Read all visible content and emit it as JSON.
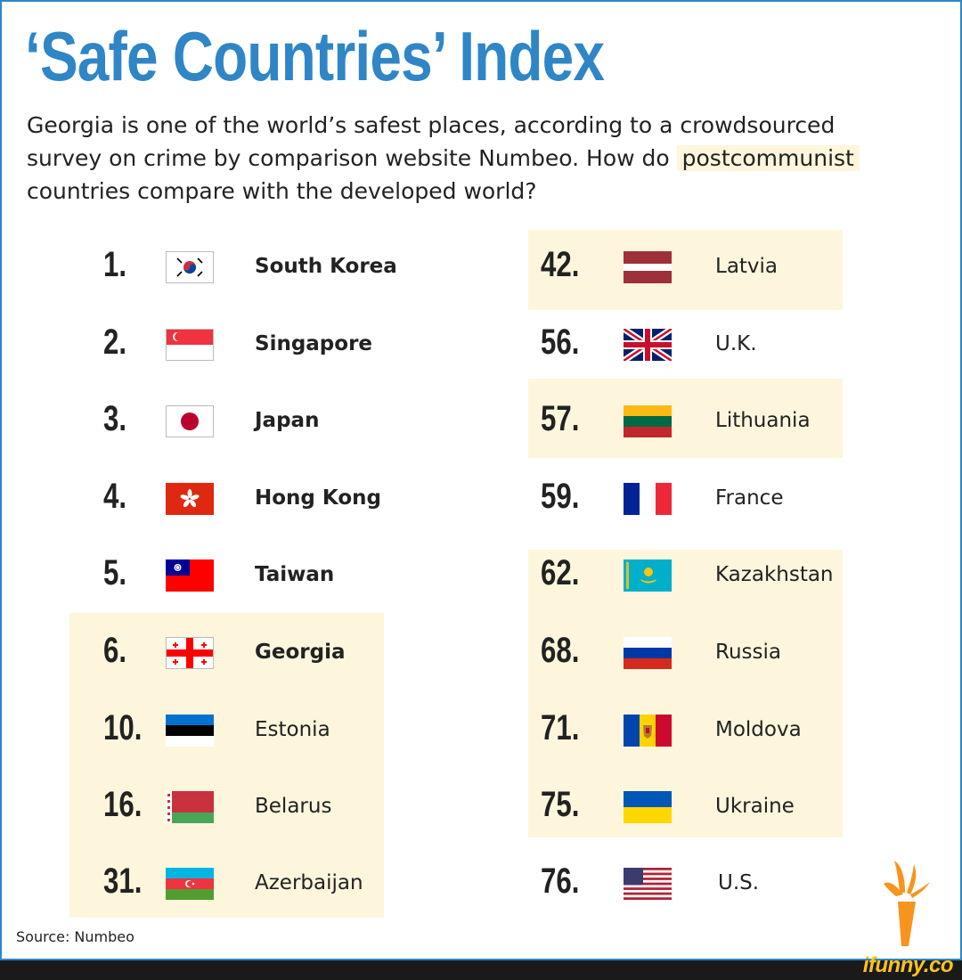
{
  "title": "‘Safe Countries’ Index",
  "subtitle": {
    "before": "Georgia is one of the world’s safest places, according to a crowdsourced survey on crime by comparison website Numbeo. How do ",
    "highlight": "postcommunist",
    "after": " countries compare with the developed world?"
  },
  "colors": {
    "accent": "#2f86c6",
    "highlight": "#fdf6dc",
    "text": "#222222"
  },
  "left_column": [
    {
      "rank": "1.",
      "country": "South Korea",
      "flag": "south-korea-flag",
      "highlighted": false
    },
    {
      "rank": "2.",
      "country": "Singapore",
      "flag": "singapore-flag",
      "highlighted": false
    },
    {
      "rank": "3.",
      "country": "Japan",
      "flag": "japan-flag",
      "highlighted": false
    },
    {
      "rank": "4.",
      "country": "Hong Kong",
      "flag": "hong-kong-flag",
      "highlighted": false
    },
    {
      "rank": "5.",
      "country": "Taiwan",
      "flag": "taiwan-flag",
      "highlighted": false
    },
    {
      "rank": "6.",
      "country": "Georgia",
      "flag": "georgia-flag",
      "highlighted": true
    },
    {
      "rank": "10.",
      "country": "Estonia",
      "flag": "estonia-flag",
      "highlighted": true
    },
    {
      "rank": "16.",
      "country": "Belarus",
      "flag": "belarus-flag",
      "highlighted": true
    },
    {
      "rank": "31.",
      "country": "Azerbaijan",
      "flag": "azerbaijan-flag",
      "highlighted": true
    }
  ],
  "right_column": [
    {
      "rank": "42.",
      "country": "Latvia",
      "flag": "latvia-flag",
      "highlighted": true
    },
    {
      "rank": "56.",
      "country": "U.K.",
      "flag": "uk-flag",
      "highlighted": false
    },
    {
      "rank": "57.",
      "country": "Lithuania",
      "flag": "lithuania-flag",
      "highlighted": true
    },
    {
      "rank": "59.",
      "country": "France",
      "flag": "france-flag",
      "highlighted": false
    },
    {
      "rank": "62.",
      "country": "Kazakhstan",
      "flag": "kazakhstan-flag",
      "highlighted": true
    },
    {
      "rank": "68.",
      "country": "Russia",
      "flag": "russia-flag",
      "highlighted": true
    },
    {
      "rank": "71.",
      "country": "Moldova",
      "flag": "moldova-flag",
      "highlighted": true
    },
    {
      "rank": "75.",
      "country": "Ukraine",
      "flag": "ukraine-flag",
      "highlighted": true
    },
    {
      "rank": "76.",
      "country": "U.S.",
      "flag": "us-flag",
      "highlighted": false
    }
  ],
  "source": "Source: Numbeo",
  "logo": "rferl-torch-icon",
  "watermark": "ifunny.co"
}
